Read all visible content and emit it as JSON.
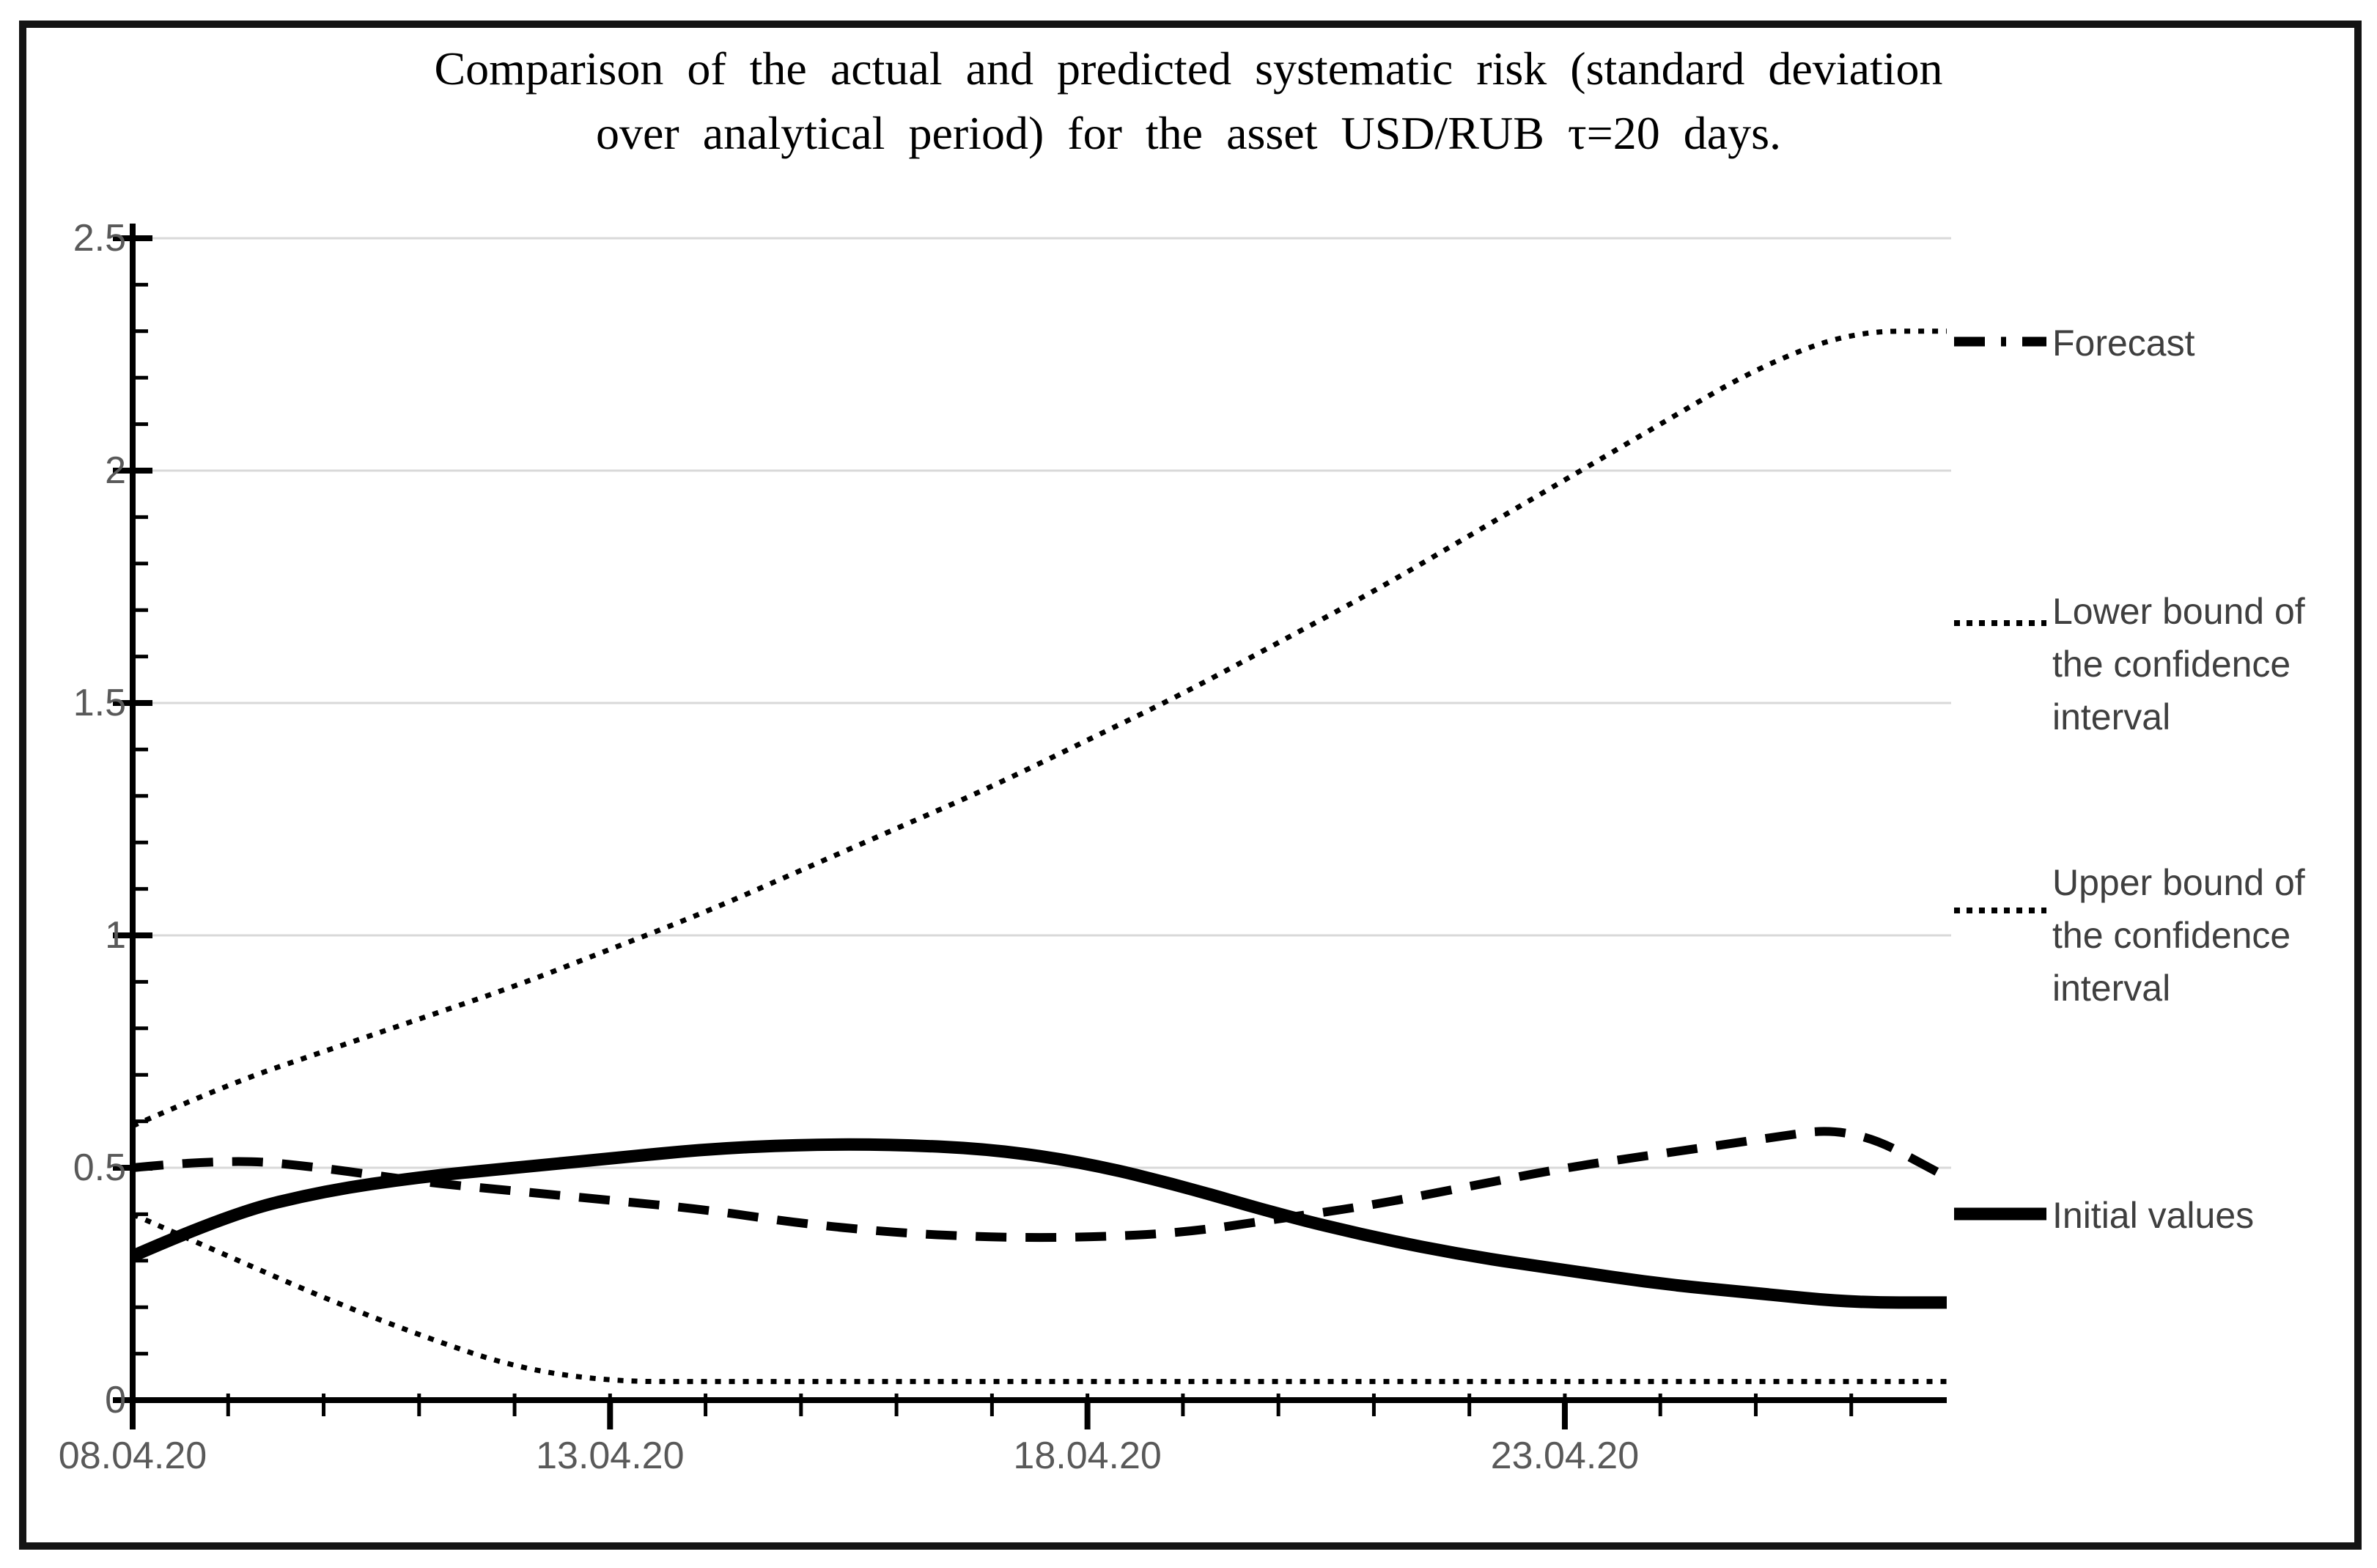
{
  "figure": {
    "title_lines": [
      "Comparison of the actual and predicted systematic risk (standard deviation",
      "over analytical period) for the asset USD/RUB τ=20 days."
    ]
  },
  "colors": {
    "line": "#000000",
    "grid": "#d9d9d9",
    "axis": "#000000",
    "tick_text": "#595959",
    "legend_text": "#3f3f3f",
    "frame": "#141414",
    "background": "#ffffff"
  },
  "chart_data": {
    "type": "line",
    "title": "Comparison of the actual and predicted systematic risk (standard deviation over analytical period) for the asset USD/RUB τ=20 days.",
    "xlabel": "",
    "ylabel": "",
    "x": {
      "tick_labels": [
        "08.04.20",
        "13.04.20",
        "18.04.20",
        "23.04.20"
      ],
      "tick_days": [
        0,
        5,
        10,
        15
      ],
      "total_days": 19,
      "minor_tick_every_days": 1
    },
    "y": {
      "ticks": [
        0,
        0.5,
        1,
        1.5,
        2,
        2.5
      ],
      "lim": [
        0,
        2.5
      ],
      "minor_step": 0.1
    },
    "grid": true,
    "legend_position": "right",
    "series": [
      {
        "name": "Forecast",
        "style": "dashed",
        "values": [
          0.5,
          0.52,
          0.5,
          0.47,
          0.45,
          0.43,
          0.41,
          0.38,
          0.36,
          0.35,
          0.35,
          0.36,
          0.39,
          0.42,
          0.46,
          0.5,
          0.53,
          0.56,
          0.59,
          0.48
        ]
      },
      {
        "name": "Upper bound of the confidence interval",
        "style": "dotted",
        "values": [
          0.59,
          0.68,
          0.75,
          0.82,
          0.89,
          0.97,
          1.05,
          1.14,
          1.23,
          1.32,
          1.42,
          1.52,
          1.63,
          1.74,
          1.86,
          1.98,
          2.1,
          2.22,
          2.3,
          2.3
        ]
      },
      {
        "name": "Lower bound of the confidence interval",
        "style": "dotted",
        "values": [
          0.4,
          0.31,
          0.22,
          0.14,
          0.07,
          0.04,
          0.04,
          0.04,
          0.04,
          0.04,
          0.04,
          0.04,
          0.04,
          0.04,
          0.04,
          0.04,
          0.04,
          0.04,
          0.04,
          0.04
        ]
      },
      {
        "name": "Initial values",
        "style": "solid",
        "values": [
          0.31,
          0.4,
          0.45,
          0.48,
          0.5,
          0.52,
          0.54,
          0.55,
          0.55,
          0.54,
          0.51,
          0.46,
          0.4,
          0.35,
          0.31,
          0.28,
          0.25,
          0.23,
          0.21,
          0.21
        ]
      }
    ],
    "legend": [
      {
        "label": "Forecast",
        "style": "dashed"
      },
      {
        "label": "Lower bound of the confidence interval",
        "style": "dotted"
      },
      {
        "label": "Upper bound of the confidence interval",
        "style": "dotted"
      },
      {
        "label": "Initial values",
        "style": "solid"
      }
    ]
  }
}
